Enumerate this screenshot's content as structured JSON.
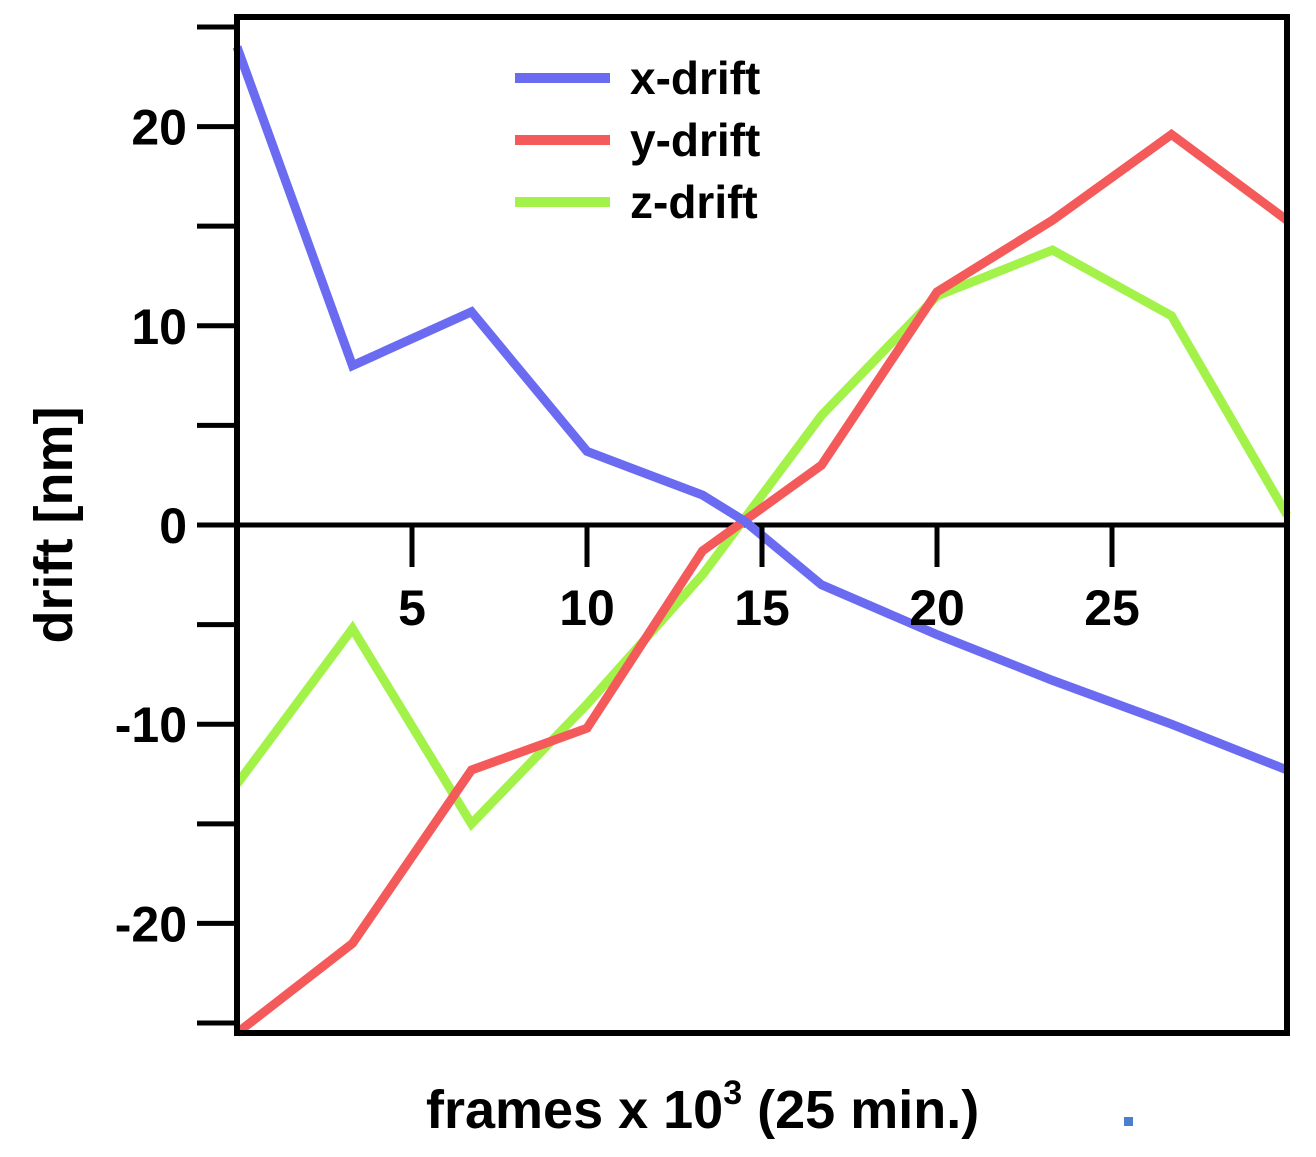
{
  "chart_data": {
    "type": "line",
    "title": "",
    "xlabel": "frames x 10",
    "xlabel_superscript": "3",
    "xlabel_suffix": " (25 min.)",
    "ylabel": "drift [nm]",
    "xlim": [
      0,
      30
    ],
    "ylim": [
      -25.5,
      25.5
    ],
    "x_ticks": [
      5,
      10,
      15,
      20,
      25
    ],
    "x_tick_labels": [
      "5",
      "10",
      "15",
      "20",
      "25"
    ],
    "y_ticks": [
      -20,
      -10,
      0,
      10,
      20
    ],
    "y_tick_labels": [
      "-20",
      "-10",
      "0",
      "10",
      "20"
    ],
    "y_minor_ticks": [
      -25,
      -15,
      -5,
      5,
      15,
      25
    ],
    "grid": false,
    "zero_line": true,
    "legend_position": "top-center",
    "series": [
      {
        "name": "x-drift",
        "color": "#6b6bf2",
        "x": [
          0,
          3.3,
          6.7,
          10,
          13.3,
          14.5,
          16.7,
          20,
          23.3,
          26.7,
          30
        ],
        "y": [
          24,
          8,
          10.7,
          3.7,
          1.5,
          0.2,
          -3,
          -5.5,
          -7.8,
          -10,
          -12.3
        ]
      },
      {
        "name": "y-drift",
        "color": "#f55a5a",
        "x": [
          0,
          3.3,
          6.7,
          10,
          13.3,
          16.7,
          20,
          23.3,
          26.7,
          30
        ],
        "y": [
          -25.5,
          -21,
          -12.3,
          -10.2,
          -1.3,
          3,
          11.7,
          15.3,
          19.6,
          15.3
        ]
      },
      {
        "name": "z-drift",
        "color": "#a3f24a",
        "x": [
          0,
          3.3,
          6.7,
          10,
          13.3,
          16.7,
          20,
          23.3,
          26.7,
          30
        ],
        "y": [
          -13,
          -5.2,
          -15,
          -9,
          -2.5,
          5.5,
          11.5,
          13.8,
          10.5,
          0.5
        ]
      }
    ],
    "annotation_dot_color": "#4a7fd0"
  }
}
